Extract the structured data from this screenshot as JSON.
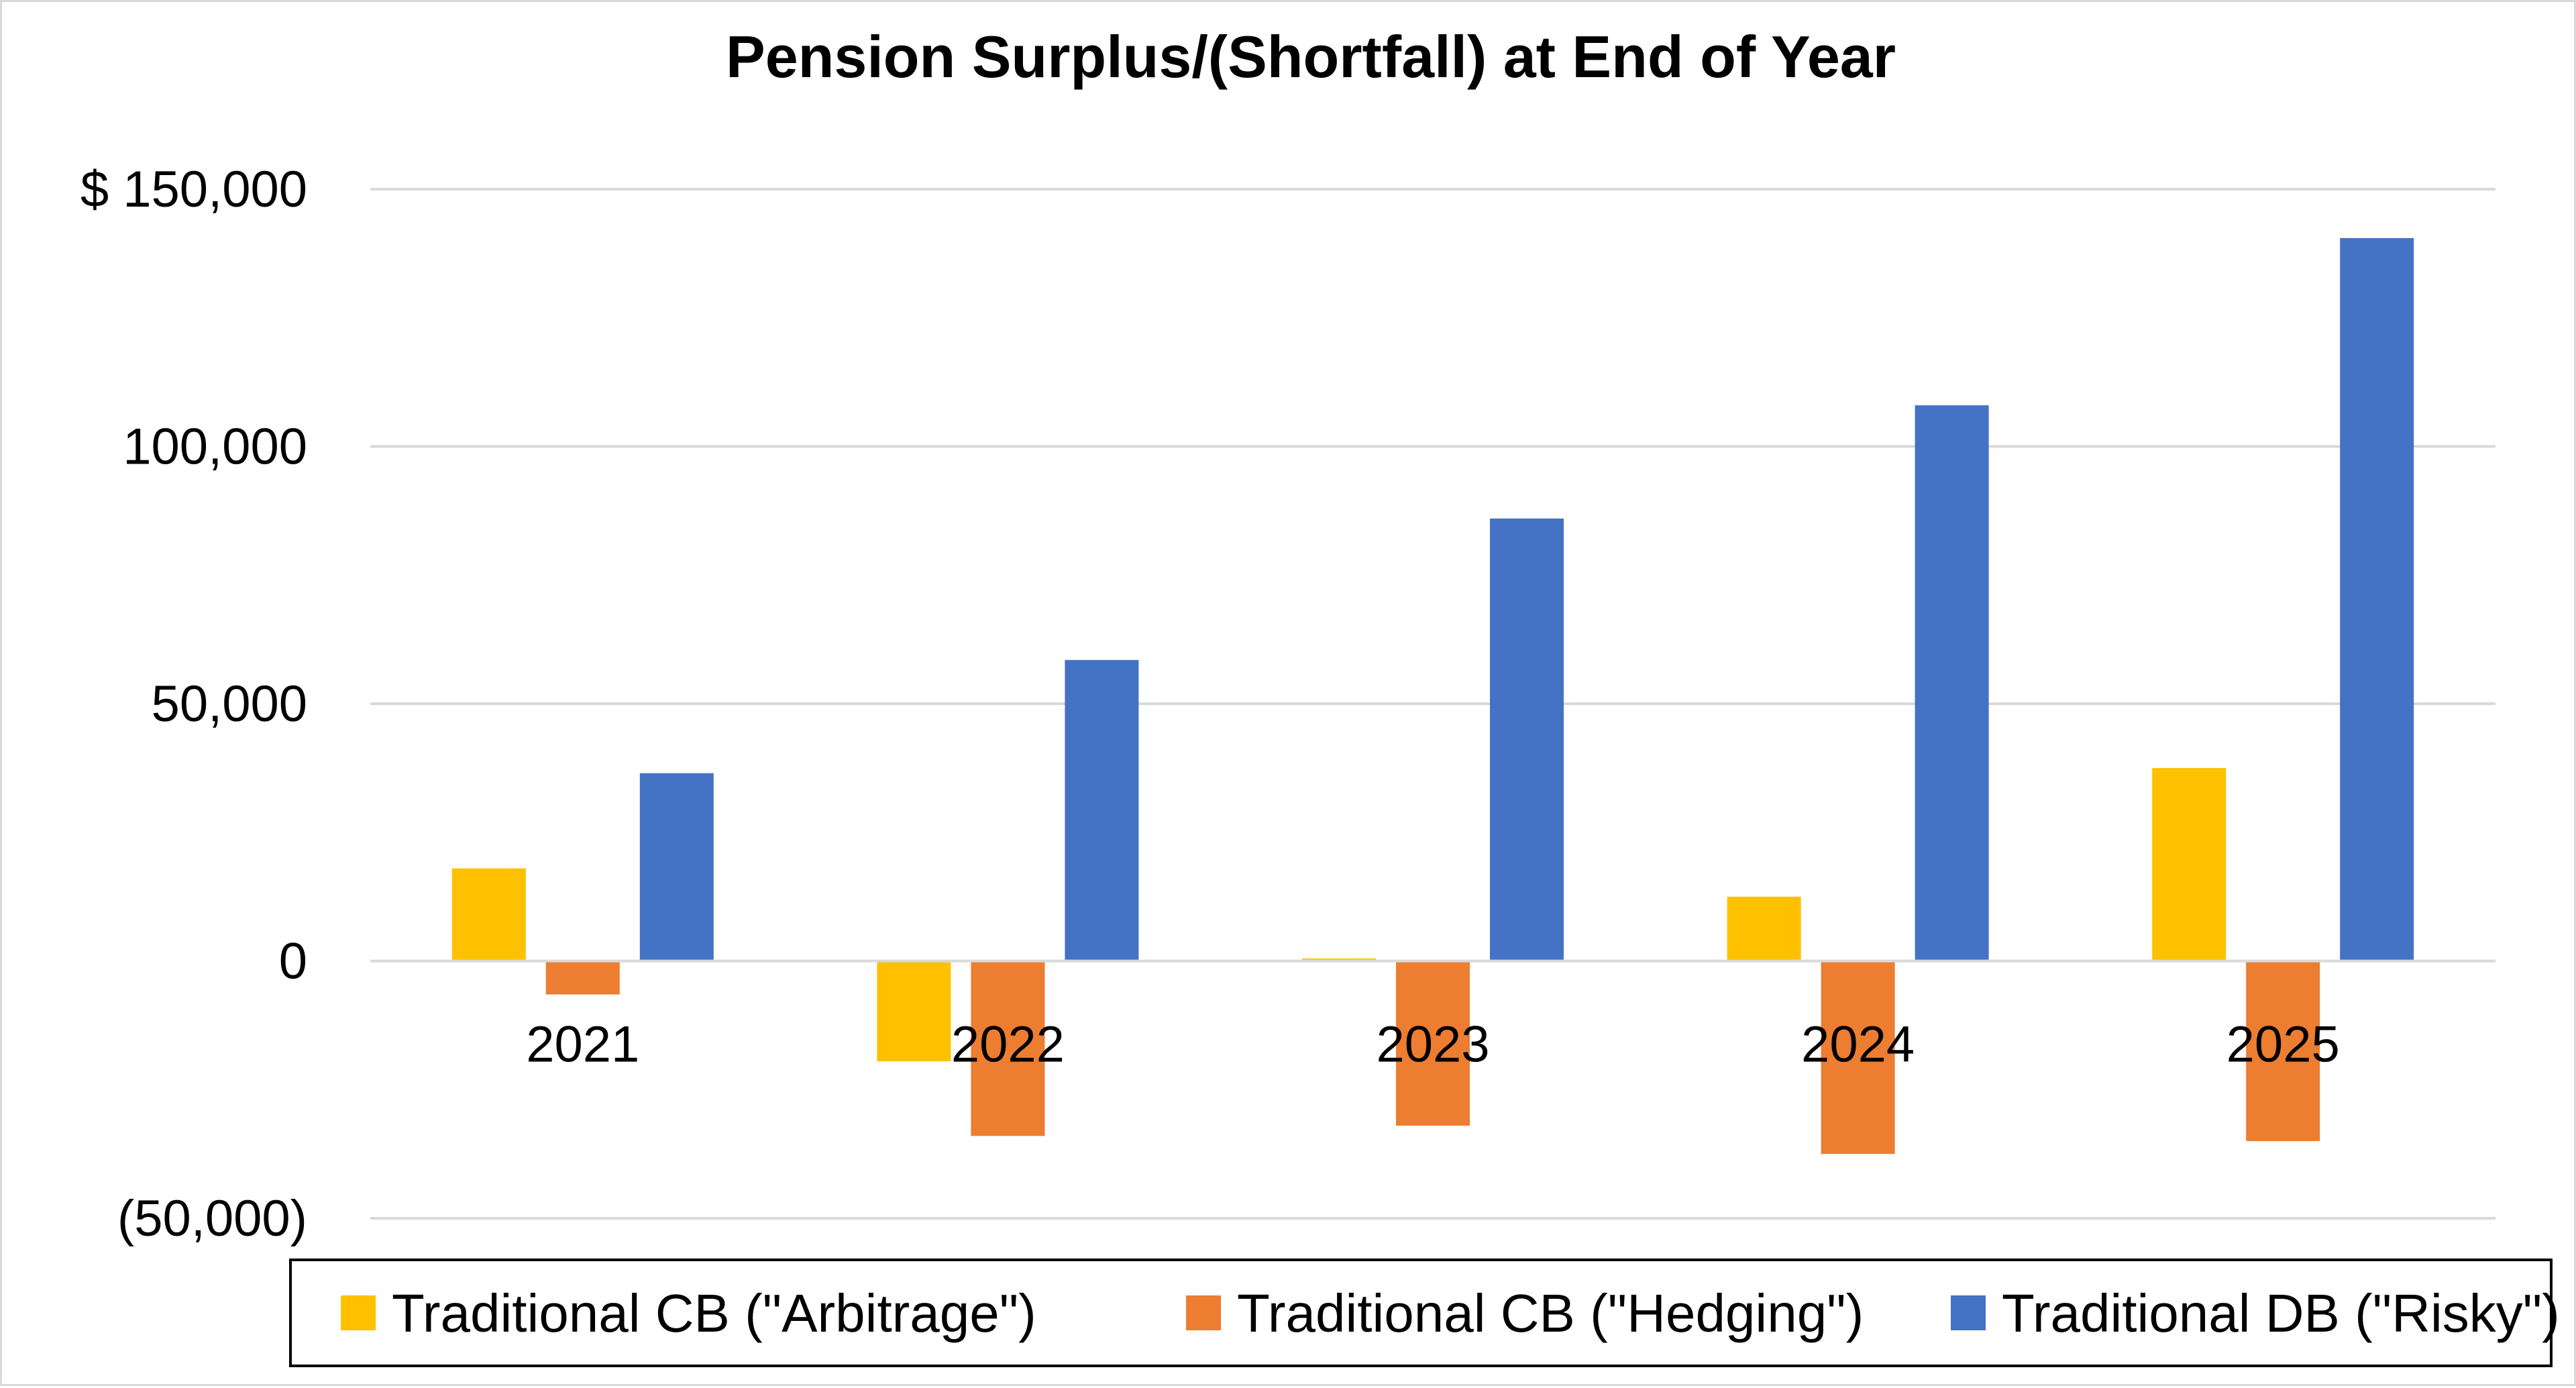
{
  "chart_data": {
    "type": "bar",
    "title": "Pension Surplus/(Shortfall) at End of Year",
    "xlabel": "",
    "ylabel": "",
    "categories": [
      "2021",
      "2022",
      "2023",
      "2024",
      "2025"
    ],
    "series": [
      {
        "name": "Traditional CB (\"Arbitrage\")",
        "color": "#ffc000",
        "values": [
          18000,
          -19500,
          500,
          12500,
          37500
        ]
      },
      {
        "name": "Traditional CB (\"Hedging\")",
        "color": "#ed7d31",
        "values": [
          -6500,
          -34000,
          -32000,
          -37500,
          -35000
        ]
      },
      {
        "name": "Traditional DB (\"Risky\")",
        "color": "#4472c4",
        "values": [
          36500,
          58500,
          86000,
          108000,
          140500
        ]
      }
    ],
    "ylim": [
      -50000,
      150000
    ],
    "yticks": [
      150000,
      100000,
      50000,
      0,
      -50000
    ],
    "ytick_labels": [
      "$ 150,000",
      "100,000",
      "50,000",
      "0",
      "(50,000)"
    ],
    "grid": true,
    "legend_position": "bottom"
  }
}
